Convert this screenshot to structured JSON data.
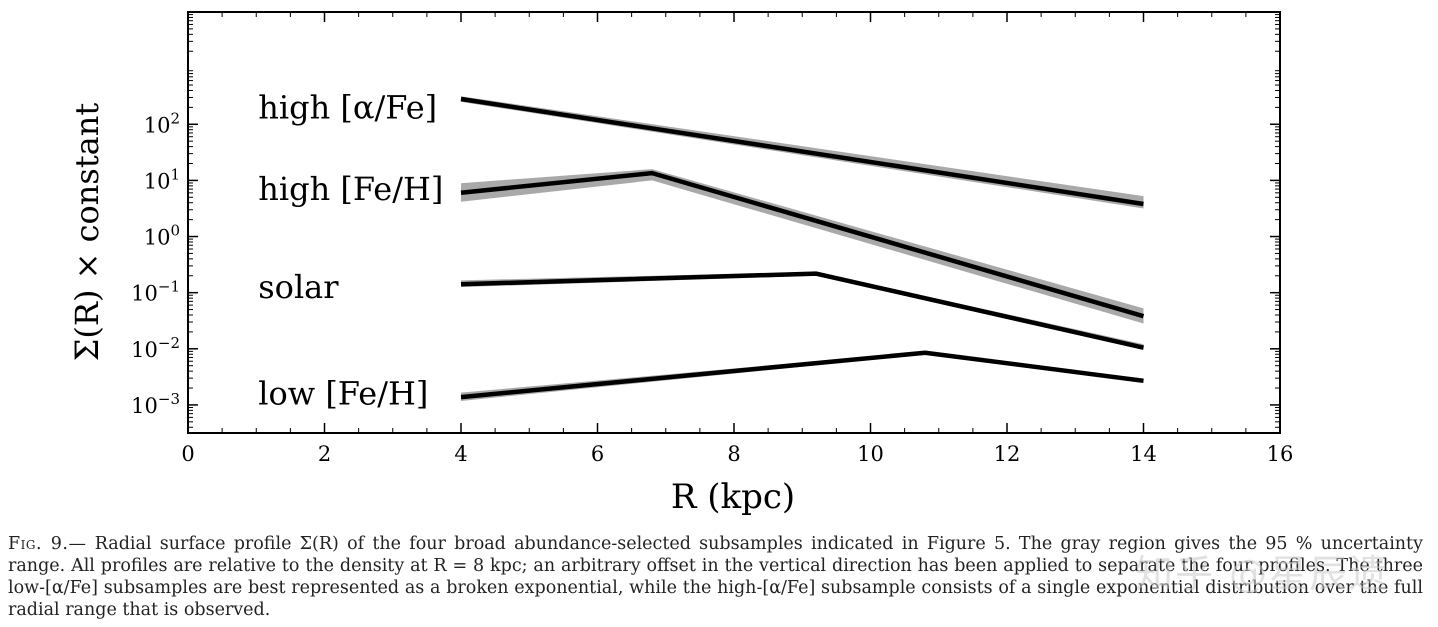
{
  "chart_data": {
    "type": "line",
    "xlabel": "R (kpc)",
    "ylabel": "Σ(R) × constant",
    "xlim": [
      0,
      16
    ],
    "ylim_log10": [
      -3.5,
      4.0
    ],
    "yscale": "log",
    "xticks": [
      "0",
      "2",
      "4",
      "6",
      "8",
      "10",
      "12",
      "14",
      "16"
    ],
    "yticks": [
      {
        "base": "10",
        "exp": "2",
        "log": 2
      },
      {
        "base": "10",
        "exp": "1",
        "log": 1
      },
      {
        "base": "10",
        "exp": "0",
        "log": 0
      },
      {
        "base": "10",
        "exp": "−1",
        "log": -1
      },
      {
        "base": "10",
        "exp": "−2",
        "log": -2
      },
      {
        "base": "10",
        "exp": "−3",
        "log": -3
      }
    ],
    "grid": false,
    "band_color": "#a9a9a9",
    "line_color": "#000000",
    "series": [
      {
        "name": "high [α/Fe]",
        "label_x": 1.0,
        "label_logy": 2.3,
        "x": [
          4,
          14
        ],
        "logy": [
          2.45,
          0.58
        ],
        "band_upper": [
          2.5,
          0.72
        ],
        "band_lower": [
          2.4,
          0.5
        ]
      },
      {
        "name": "high [Fe/H]",
        "label_x": 1.0,
        "label_logy": 0.85,
        "x": [
          4,
          6.8,
          14
        ],
        "logy": [
          0.78,
          1.13,
          -1.42
        ],
        "band_upper": [
          0.95,
          1.2,
          -1.28
        ],
        "band_lower": [
          0.62,
          1.0,
          -1.55
        ]
      },
      {
        "name": "solar",
        "label_x": 1.0,
        "label_logy": -0.9,
        "x": [
          4,
          9.2,
          14
        ],
        "logy": [
          -0.85,
          -0.66,
          -1.98
        ],
        "band_upper": [
          -0.78,
          -0.63,
          -1.92
        ],
        "band_lower": [
          -0.9,
          -0.7,
          -2.02
        ]
      },
      {
        "name": "low [Fe/H]",
        "label_x": 1.0,
        "label_logy": -2.8,
        "x": [
          4,
          10.8,
          14
        ],
        "logy": [
          -2.86,
          -2.07,
          -2.57
        ],
        "band_upper": [
          -2.78,
          -2.05,
          -2.53
        ],
        "band_lower": [
          -2.93,
          -2.1,
          -2.6
        ]
      }
    ]
  },
  "caption": {
    "label": "Fig. 9.—",
    "text": "Radial surface profile Σ(R) of the four broad abundance-selected subsamples indicated in Figure 5. The gray region gives the 95 % uncertainty range. All profiles are relative to the density at R = 8 kpc; an arbitrary offset in the vertical direction has been applied to separate the four profiles. The three low-[α/Fe] subsamples are best represented as a broken exponential, while the high-[α/Fe] subsample consists of a single exponential distribution over the full radial range that is observed."
  },
  "watermark": {
    "text": "知乎 @星辰遗"
  }
}
